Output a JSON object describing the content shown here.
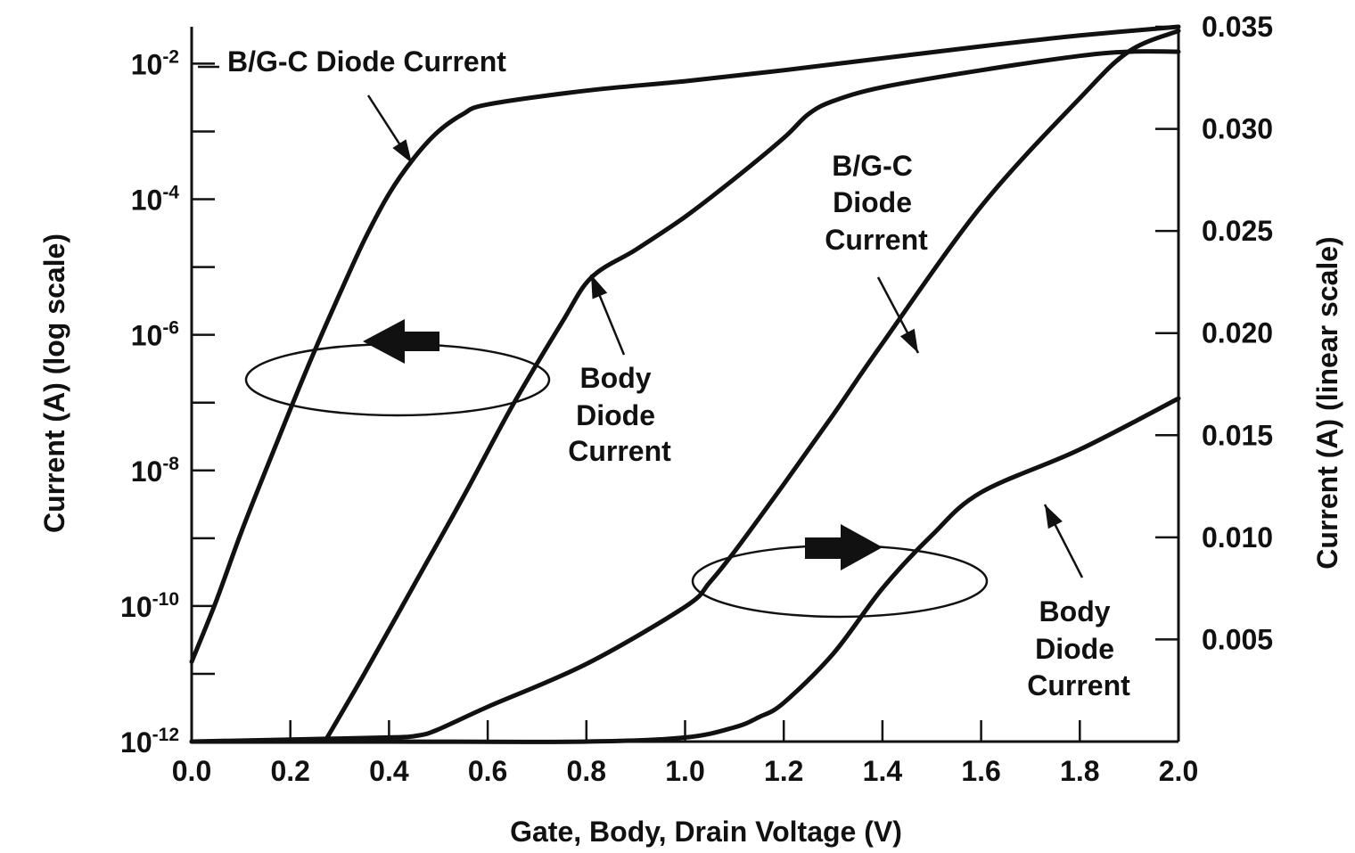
{
  "chart_data": {
    "type": "line",
    "xlabel": "Gate, Body, Drain Voltage (V)",
    "ylabel_left": "Current (A) (log scale)",
    "ylabel_right": "Current (A) (linear scale)",
    "xlim": [
      0.0,
      2.0
    ],
    "ylim_left_log": [
      1e-12,
      0.035
    ],
    "ylim_right": [
      0.0,
      0.035
    ],
    "x_tick_labels": [
      "0.0",
      "0.2",
      "0.4",
      "0.6",
      "0.8",
      "1.0",
      "1.2",
      "1.4",
      "1.6",
      "1.8",
      "2.0"
    ],
    "y_left_ticks": [
      {
        "value": 1e-12,
        "base": "10",
        "exp": "-12"
      },
      {
        "value": 1e-10,
        "base": "10",
        "exp": "-10"
      },
      {
        "value": 1e-08,
        "base": "10",
        "exp": "-8"
      },
      {
        "value": 1e-06,
        "base": "10",
        "exp": "-6"
      },
      {
        "value": 0.0001,
        "base": "10",
        "exp": "-4"
      },
      {
        "value": 0.01,
        "base": "10",
        "exp": "-2"
      }
    ],
    "y_right_tick_labels": [
      "0.005",
      "0.010",
      "0.015",
      "0.020",
      "0.025",
      "0.030",
      "0.035"
    ],
    "grid": false,
    "series": [
      {
        "axis": "left-log",
        "x": [
          0.0,
          0.05,
          0.1,
          0.15,
          0.2,
          0.25,
          0.3,
          0.35,
          0.4,
          0.45,
          0.5,
          0.55,
          0.6,
          0.8,
          1.0,
          1.2,
          1.4,
          1.6,
          1.8,
          2.0
        ],
        "y": [
          1.5e-11,
          1.2e-10,
          1.2e-09,
          1e-08,
          8e-08,
          6e-07,
          4e-06,
          2.5e-05,
          0.00012,
          0.0004,
          0.001,
          0.0018,
          0.0025,
          0.004,
          0.0055,
          0.008,
          0.012,
          0.018,
          0.026,
          0.035
        ]
      },
      {
        "axis": "left-log",
        "x": [
          0.27,
          0.35,
          0.45,
          0.55,
          0.65,
          0.75,
          0.81,
          0.9,
          1.0,
          1.1,
          1.2,
          1.25,
          1.3,
          1.4,
          1.6,
          1.8,
          1.9,
          2.0
        ],
        "y": [
          1e-12,
          1e-11,
          2e-10,
          4e-09,
          9e-08,
          1.5e-06,
          7e-06,
          1.8e-05,
          5.5e-05,
          0.0002,
          0.0008,
          0.0018,
          0.0028,
          0.0045,
          0.008,
          0.013,
          0.015,
          0.015
        ]
      },
      {
        "axis": "right-linear",
        "x": [
          0.0,
          0.2,
          0.4,
          0.46,
          0.5,
          0.6,
          0.8,
          1.0,
          1.05,
          1.1,
          1.2,
          1.3,
          1.4,
          1.6,
          1.8,
          1.9,
          2.0
        ],
        "y": [
          0.0,
          0.0001,
          0.0002,
          0.0003,
          0.0006,
          0.0017,
          0.0038,
          0.0066,
          0.0078,
          0.0093,
          0.0126,
          0.016,
          0.0195,
          0.0262,
          0.0315,
          0.0338,
          0.0348
        ]
      },
      {
        "axis": "right-linear",
        "x": [
          0.0,
          0.4,
          0.8,
          1.0,
          1.1,
          1.15,
          1.2,
          1.3,
          1.4,
          1.5,
          1.6,
          1.8,
          2.0
        ],
        "y": [
          0.0,
          0.0,
          0.0,
          0.0002,
          0.0007,
          0.0012,
          0.0019,
          0.0043,
          0.0075,
          0.0101,
          0.0122,
          0.0143,
          0.0168
        ]
      }
    ],
    "annotations": [
      {
        "lines": [
          "B/G-C Diode Current"
        ]
      },
      {
        "lines": [
          "Body",
          "Diode",
          "Current"
        ]
      },
      {
        "lines": [
          "B/G-C",
          "Diode",
          "Current"
        ]
      },
      {
        "lines": [
          "Body",
          "Diode",
          "Current"
        ]
      }
    ]
  }
}
